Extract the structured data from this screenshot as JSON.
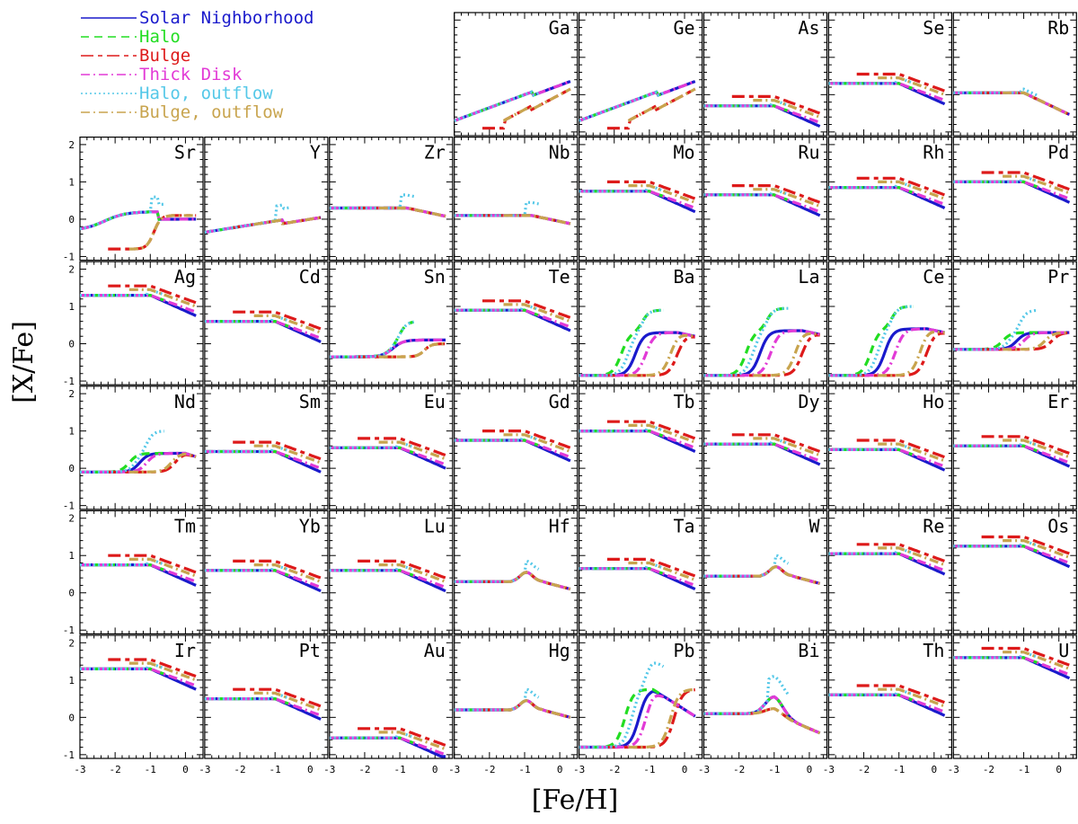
{
  "chart_data": {
    "type": "line",
    "xlabel": "[Fe/H]",
    "ylabel": "[X/Fe]",
    "xlim": [
      -3,
      0.5
    ],
    "ylim": [
      -1.1,
      2.2
    ],
    "xticks": [
      -3,
      -2,
      -1,
      0
    ],
    "yticks": [
      -1,
      0,
      1,
      2
    ],
    "legend_placement": "top-left",
    "series": [
      {
        "name": "Solar Nighborhood",
        "color": "#1a1acc",
        "style": "solid"
      },
      {
        "name": "Halo",
        "color": "#22dd22",
        "style": "dashed"
      },
      {
        "name": "Bulge",
        "color": "#dd1a1a",
        "style": "longdash-dash"
      },
      {
        "name": "Thick Disk",
        "color": "#e23ad6",
        "style": "dash-dot"
      },
      {
        "name": "Halo, outflow",
        "color": "#55c8e8",
        "style": "dotted"
      },
      {
        "name": "Bulge, outflow",
        "color": "#c8a44e",
        "style": "dash-dot"
      }
    ],
    "panels": [
      {
        "element": "Ga",
        "type": "ga"
      },
      {
        "element": "Ge",
        "type": "ga"
      },
      {
        "element": "As",
        "type": "flat",
        "base": -0.3
      },
      {
        "element": "Se",
        "type": "flat",
        "base": 0.3
      },
      {
        "element": "Rb",
        "type": "rb",
        "base": 0.05
      },
      {
        "element": "Sr",
        "type": "sr"
      },
      {
        "element": "Y",
        "type": "y"
      },
      {
        "element": "Zr",
        "type": "zr",
        "base": 0.3
      },
      {
        "element": "Nb",
        "type": "zr",
        "base": 0.1
      },
      {
        "element": "Mo",
        "type": "flat",
        "base": 0.75
      },
      {
        "element": "Ru",
        "type": "flat",
        "base": 0.65
      },
      {
        "element": "Rh",
        "type": "flat",
        "base": 0.85
      },
      {
        "element": "Pd",
        "type": "flat",
        "base": 1.0
      },
      {
        "element": "Ag",
        "type": "flat",
        "base": 1.3
      },
      {
        "element": "Cd",
        "type": "flat",
        "base": 0.6
      },
      {
        "element": "Sn",
        "type": "sn"
      },
      {
        "element": "Te",
        "type": "flat",
        "base": 0.9
      },
      {
        "element": "Ba",
        "type": "s",
        "peak": 0.3
      },
      {
        "element": "La",
        "type": "s",
        "peak": 0.35
      },
      {
        "element": "Ce",
        "type": "s",
        "peak": 0.4
      },
      {
        "element": "Pr",
        "type": "pr"
      },
      {
        "element": "Nd",
        "type": "nd"
      },
      {
        "element": "Sm",
        "type": "flat",
        "base": 0.45
      },
      {
        "element": "Eu",
        "type": "flat",
        "base": 0.55
      },
      {
        "element": "Gd",
        "type": "flat",
        "base": 0.75
      },
      {
        "element": "Tb",
        "type": "flat",
        "base": 1.0
      },
      {
        "element": "Dy",
        "type": "flat",
        "base": 0.65
      },
      {
        "element": "Ho",
        "type": "flat",
        "base": 0.5
      },
      {
        "element": "Er",
        "type": "flat",
        "base": 0.6
      },
      {
        "element": "Tm",
        "type": "flat",
        "base": 0.75
      },
      {
        "element": "Yb",
        "type": "flat",
        "base": 0.6
      },
      {
        "element": "Lu",
        "type": "flat",
        "base": 0.6
      },
      {
        "element": "Hf",
        "type": "bump",
        "base": 0.3
      },
      {
        "element": "Ta",
        "type": "flat",
        "base": 0.65
      },
      {
        "element": "W",
        "type": "bump",
        "base": 0.45
      },
      {
        "element": "Re",
        "type": "flat",
        "base": 1.05
      },
      {
        "element": "Os",
        "type": "flat",
        "base": 1.25
      },
      {
        "element": "Ir",
        "type": "flat",
        "base": 1.3
      },
      {
        "element": "Pt",
        "type": "flat",
        "base": 0.5
      },
      {
        "element": "Au",
        "type": "flat",
        "base": -0.55
      },
      {
        "element": "Hg",
        "type": "bump",
        "base": 0.2
      },
      {
        "element": "Pb",
        "type": "pb"
      },
      {
        "element": "Bi",
        "type": "bi"
      },
      {
        "element": "Th",
        "type": "flat",
        "base": 0.6
      },
      {
        "element": "U",
        "type": "flat",
        "base": 1.6
      }
    ]
  }
}
